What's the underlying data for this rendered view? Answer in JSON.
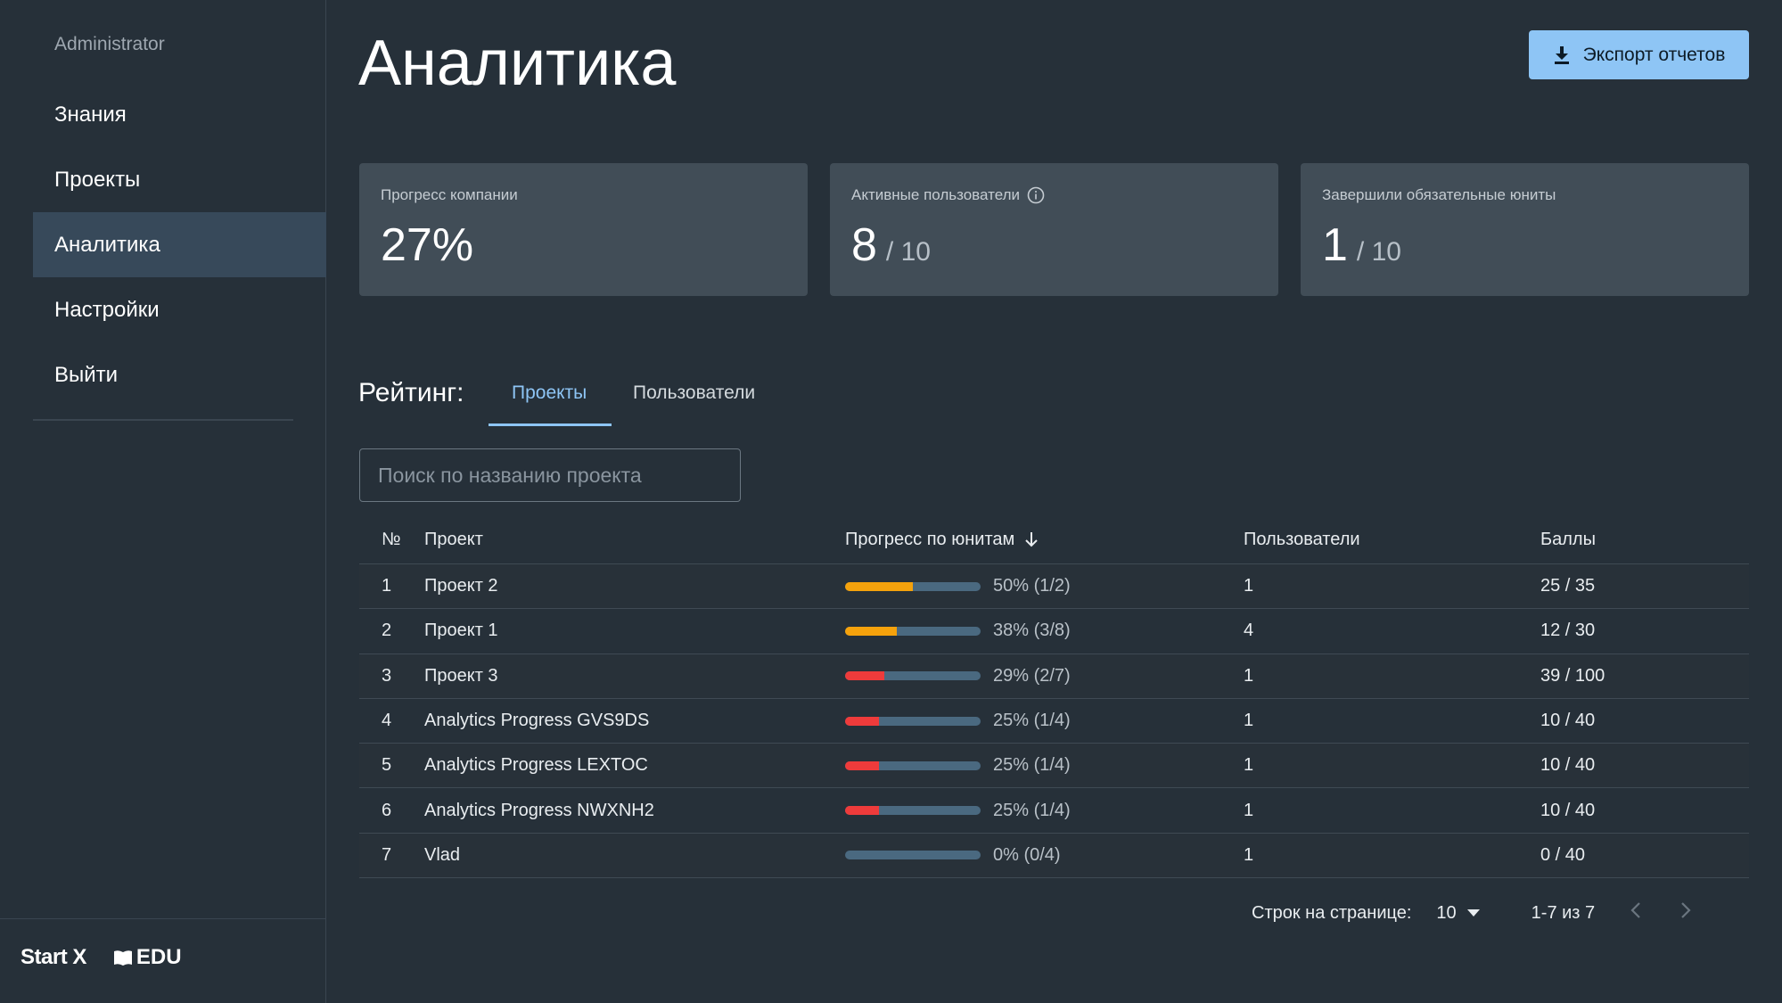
{
  "sidebar": {
    "user": "Administrator",
    "items": [
      {
        "label": "Знания"
      },
      {
        "label": "Проекты"
      },
      {
        "label": "Аналитика",
        "active": true
      },
      {
        "label": "Настройки"
      },
      {
        "label": "Выйти"
      }
    ],
    "brand": {
      "startx": "Start X",
      "edu": "EDU"
    }
  },
  "header": {
    "title": "Аналитика",
    "export_label": "Экспорт отчетов"
  },
  "cards": [
    {
      "label": "Прогресс компании",
      "value": "27%",
      "total": ""
    },
    {
      "label": "Активные пользователи",
      "value": "8",
      "total": "/ 10",
      "info_icon": "info-icon"
    },
    {
      "label": "Завершили обязательные юниты",
      "value": "1",
      "total": "/ 10"
    }
  ],
  "rating": {
    "label": "Рейтинг:",
    "tabs": [
      {
        "label": "Проекты",
        "active": true
      },
      {
        "label": "Пользователи"
      }
    ],
    "search_placeholder": "Поиск по названию проекта"
  },
  "table": {
    "headers": {
      "num": "№",
      "name": "Проект",
      "progress": "Прогресс по юнитам",
      "users": "Пользователи",
      "score": "Баллы"
    },
    "rows": [
      {
        "num": "1",
        "name": "Проект 2",
        "progress_text": "50% (1/2)",
        "progress": 0.5,
        "color": "#f5a20c",
        "users": "1",
        "score": "25 / 35"
      },
      {
        "num": "2",
        "name": "Проект 1",
        "progress_text": "38% (3/8)",
        "progress": 0.38,
        "color": "#f5a20c",
        "users": "4",
        "score": "12 / 30"
      },
      {
        "num": "3",
        "name": "Проект 3",
        "progress_text": "29% (2/7)",
        "progress": 0.29,
        "color": "#ee3b3b",
        "users": "1",
        "score": "39 / 100"
      },
      {
        "num": "4",
        "name": "Analytics Progress GVS9DS",
        "progress_text": "25% (1/4)",
        "progress": 0.25,
        "color": "#ee3b3b",
        "users": "1",
        "score": "10 / 40"
      },
      {
        "num": "5",
        "name": "Analytics Progress LEXTOC",
        "progress_text": "25% (1/4)",
        "progress": 0.25,
        "color": "#ee3b3b",
        "users": "1",
        "score": "10 / 40"
      },
      {
        "num": "6",
        "name": "Analytics Progress NWXNH2",
        "progress_text": "25% (1/4)",
        "progress": 0.25,
        "color": "#ee3b3b",
        "users": "1",
        "score": "10 / 40"
      },
      {
        "num": "7",
        "name": "Vlad",
        "progress_text": "0% (0/4)",
        "progress": 0,
        "color": "#ee3b3b",
        "users": "1",
        "score": "0 / 40"
      }
    ]
  },
  "pagination": {
    "rows_label": "Строк на странице:",
    "rows_value": "10",
    "range": "1-7 из 7"
  },
  "colors": {
    "accent": "#8ec5f5",
    "background": "#263039",
    "card": "#414d57",
    "orange": "#f5a20c",
    "red": "#ee3b3b",
    "track": "#4a6980"
  }
}
